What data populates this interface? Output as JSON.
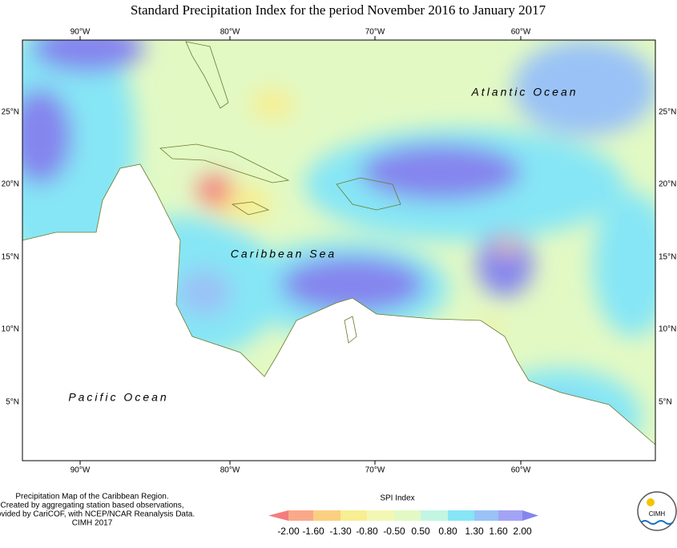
{
  "title": "Standard Precipitation Index for the period November 2016 to January 2017",
  "map": {
    "lon_labels": [
      "90°W",
      "80°W",
      "70°W",
      "60°W"
    ],
    "lat_labels": [
      "25°N",
      "20°N",
      "15°N",
      "10°N",
      "5°N"
    ],
    "places": [
      "Atlantic Ocean",
      "Caribbean Sea",
      "Pacific Ocean"
    ]
  },
  "footer": [
    "Precipitation Map of the Caribbean Region.",
    "Created by aggregating station based observations,",
    "provided by CariCOF, with NCEP/NCAR Reanalysis Data.",
    "CIMH 2017"
  ],
  "legend": {
    "title": "SPI Index",
    "labels": [
      "-2.00",
      "-1.60",
      "-1.30",
      "-0.80",
      "-0.50",
      "0.50",
      "0.80",
      "1.30",
      "1.60",
      "2.00"
    ],
    "colors": [
      "#f47c7c",
      "#f9a98a",
      "#fbcf80",
      "#f8ee92",
      "#f3f7b6",
      "#e2f9c4",
      "#c2f6e2",
      "#86e6f5",
      "#9ac2f6",
      "#a3a3f6",
      "#8585ee"
    ]
  },
  "logo": "CIMH"
}
